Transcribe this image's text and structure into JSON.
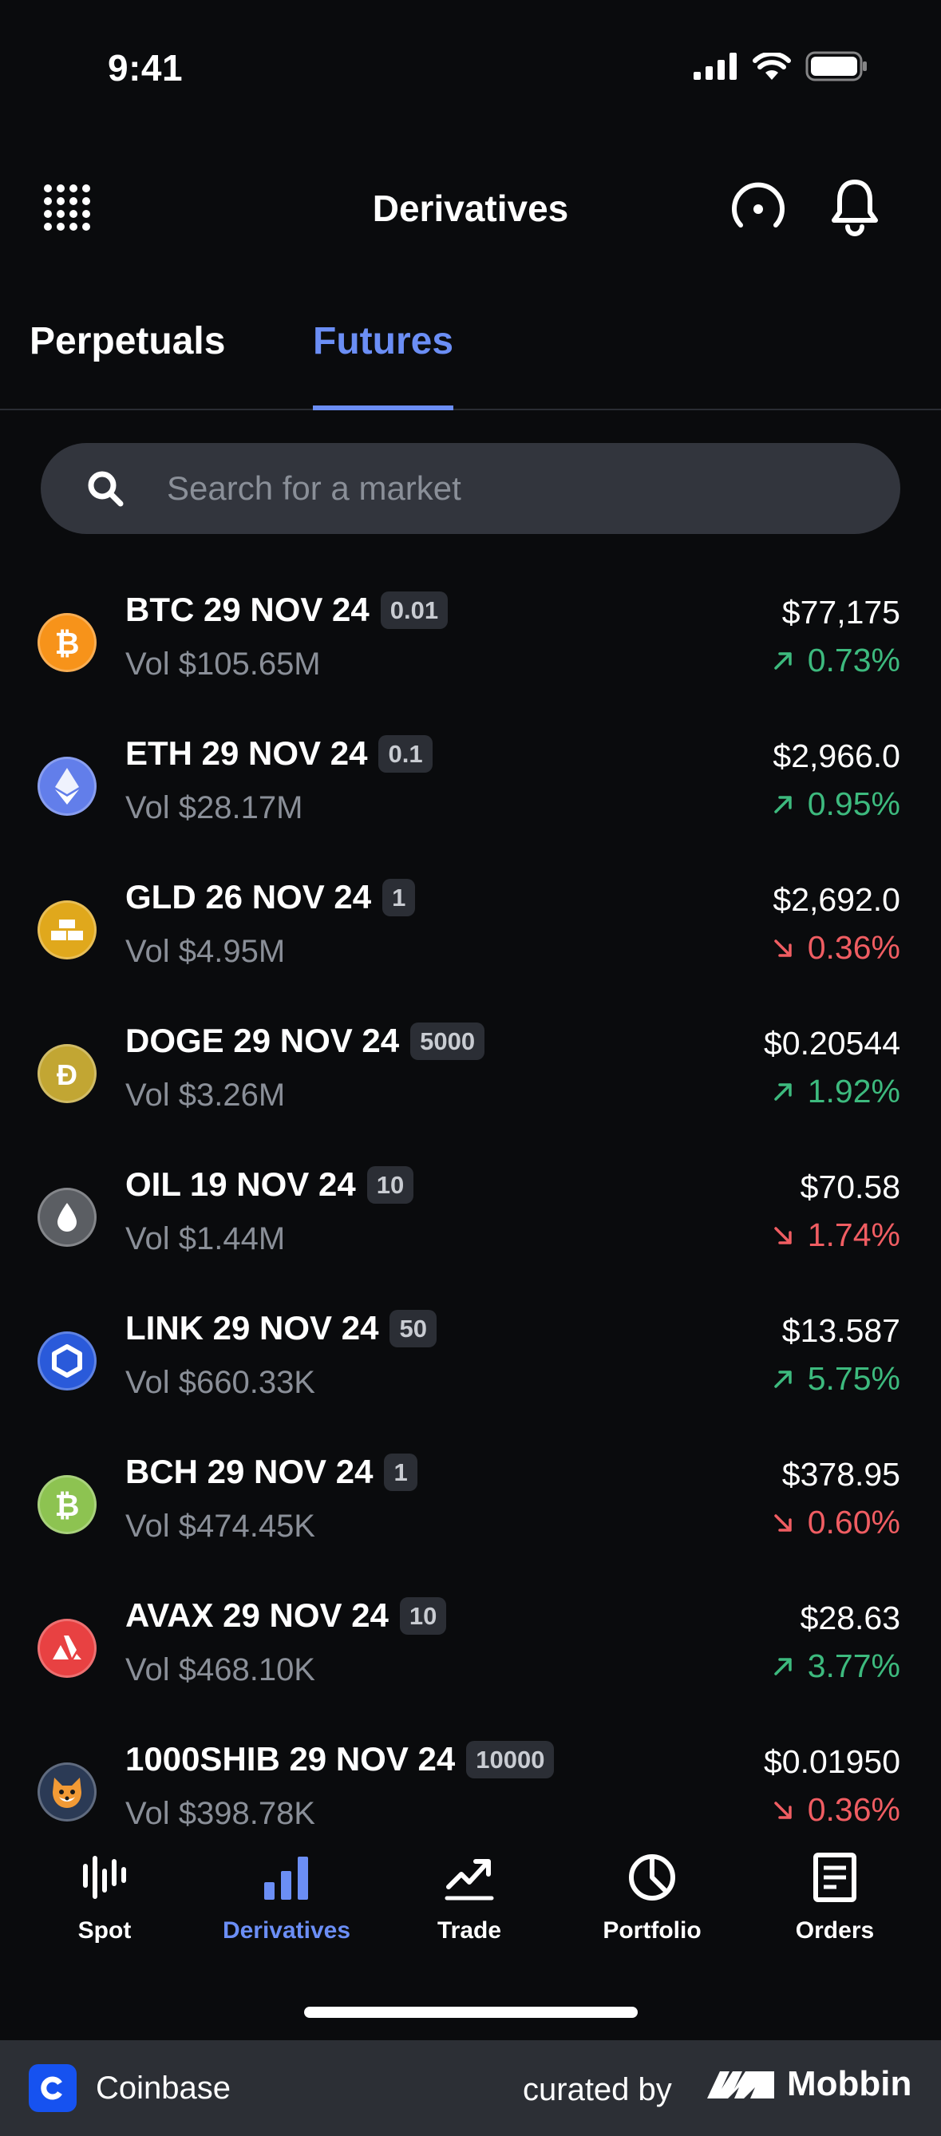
{
  "status_bar": {
    "time": "9:41"
  },
  "header": {
    "title": "Derivatives"
  },
  "tabs": [
    {
      "label": "Perpetuals",
      "active": false
    },
    {
      "label": "Futures",
      "active": true
    }
  ],
  "search": {
    "placeholder": "Search for a market",
    "value": ""
  },
  "markets": [
    {
      "name": "BTC 29 NOV 24",
      "badge": "0.01",
      "volume": "Vol $105.65M",
      "price": "$77,175",
      "change": "0.73%",
      "direction": "up",
      "icon": "bitcoin-icon",
      "color": "#f7931a"
    },
    {
      "name": "ETH 29 NOV 24",
      "badge": "0.1",
      "volume": "Vol $28.17M",
      "price": "$2,966.0",
      "change": "0.95%",
      "direction": "up",
      "icon": "ethereum-icon",
      "color": "#627eea"
    },
    {
      "name": "GLD 26 NOV 24",
      "badge": "1",
      "volume": "Vol $4.95M",
      "price": "$2,692.0",
      "change": "0.36%",
      "direction": "down",
      "icon": "gold-bars-icon",
      "color": "#e0a81c"
    },
    {
      "name": "DOGE 29 NOV 24",
      "badge": "5000",
      "volume": "Vol $3.26M",
      "price": "$0.20544",
      "change": "1.92%",
      "direction": "up",
      "icon": "dogecoin-icon",
      "color": "#c2a633"
    },
    {
      "name": "OIL 19 NOV 24",
      "badge": "10",
      "volume": "Vol $1.44M",
      "price": "$70.58",
      "change": "1.74%",
      "direction": "down",
      "icon": "oil-drop-icon",
      "color": "#5b5e63"
    },
    {
      "name": "LINK 29 NOV 24",
      "badge": "50",
      "volume": "Vol $660.33K",
      "price": "$13.587",
      "change": "5.75%",
      "direction": "up",
      "icon": "chainlink-icon",
      "color": "#2a5ada"
    },
    {
      "name": "BCH 29 NOV 24",
      "badge": "1",
      "volume": "Vol $474.45K",
      "price": "$378.95",
      "change": "0.60%",
      "direction": "down",
      "icon": "bitcoin-cash-icon",
      "color": "#8dc351"
    },
    {
      "name": "AVAX 29 NOV 24",
      "badge": "10",
      "volume": "Vol $468.10K",
      "price": "$28.63",
      "change": "3.77%",
      "direction": "up",
      "icon": "avalanche-icon",
      "color": "#e84142"
    },
    {
      "name": "1000SHIB 29 NOV 24",
      "badge": "10000",
      "volume": "Vol $398.78K",
      "price": "$0.01950",
      "change": "0.36%",
      "direction": "down",
      "icon": "shiba-inu-icon",
      "color": "#2b3a55"
    }
  ],
  "bottom_nav": [
    {
      "label": "Spot",
      "icon": "spot-chart-icon",
      "active": false
    },
    {
      "label": "Derivatives",
      "icon": "bar-chart-icon",
      "active": true
    },
    {
      "label": "Trade",
      "icon": "trend-line-icon",
      "active": false
    },
    {
      "label": "Portfolio",
      "icon": "pie-chart-icon",
      "active": false
    },
    {
      "label": "Orders",
      "icon": "document-icon",
      "active": false
    }
  ],
  "footer": {
    "app_name": "Coinbase",
    "curated_by": "curated by",
    "brand": "Mobbin"
  },
  "colors": {
    "accent": "#6b8ef5",
    "positive": "#3dba7e",
    "negative": "#f05d62",
    "background": "#0a0b0d"
  }
}
